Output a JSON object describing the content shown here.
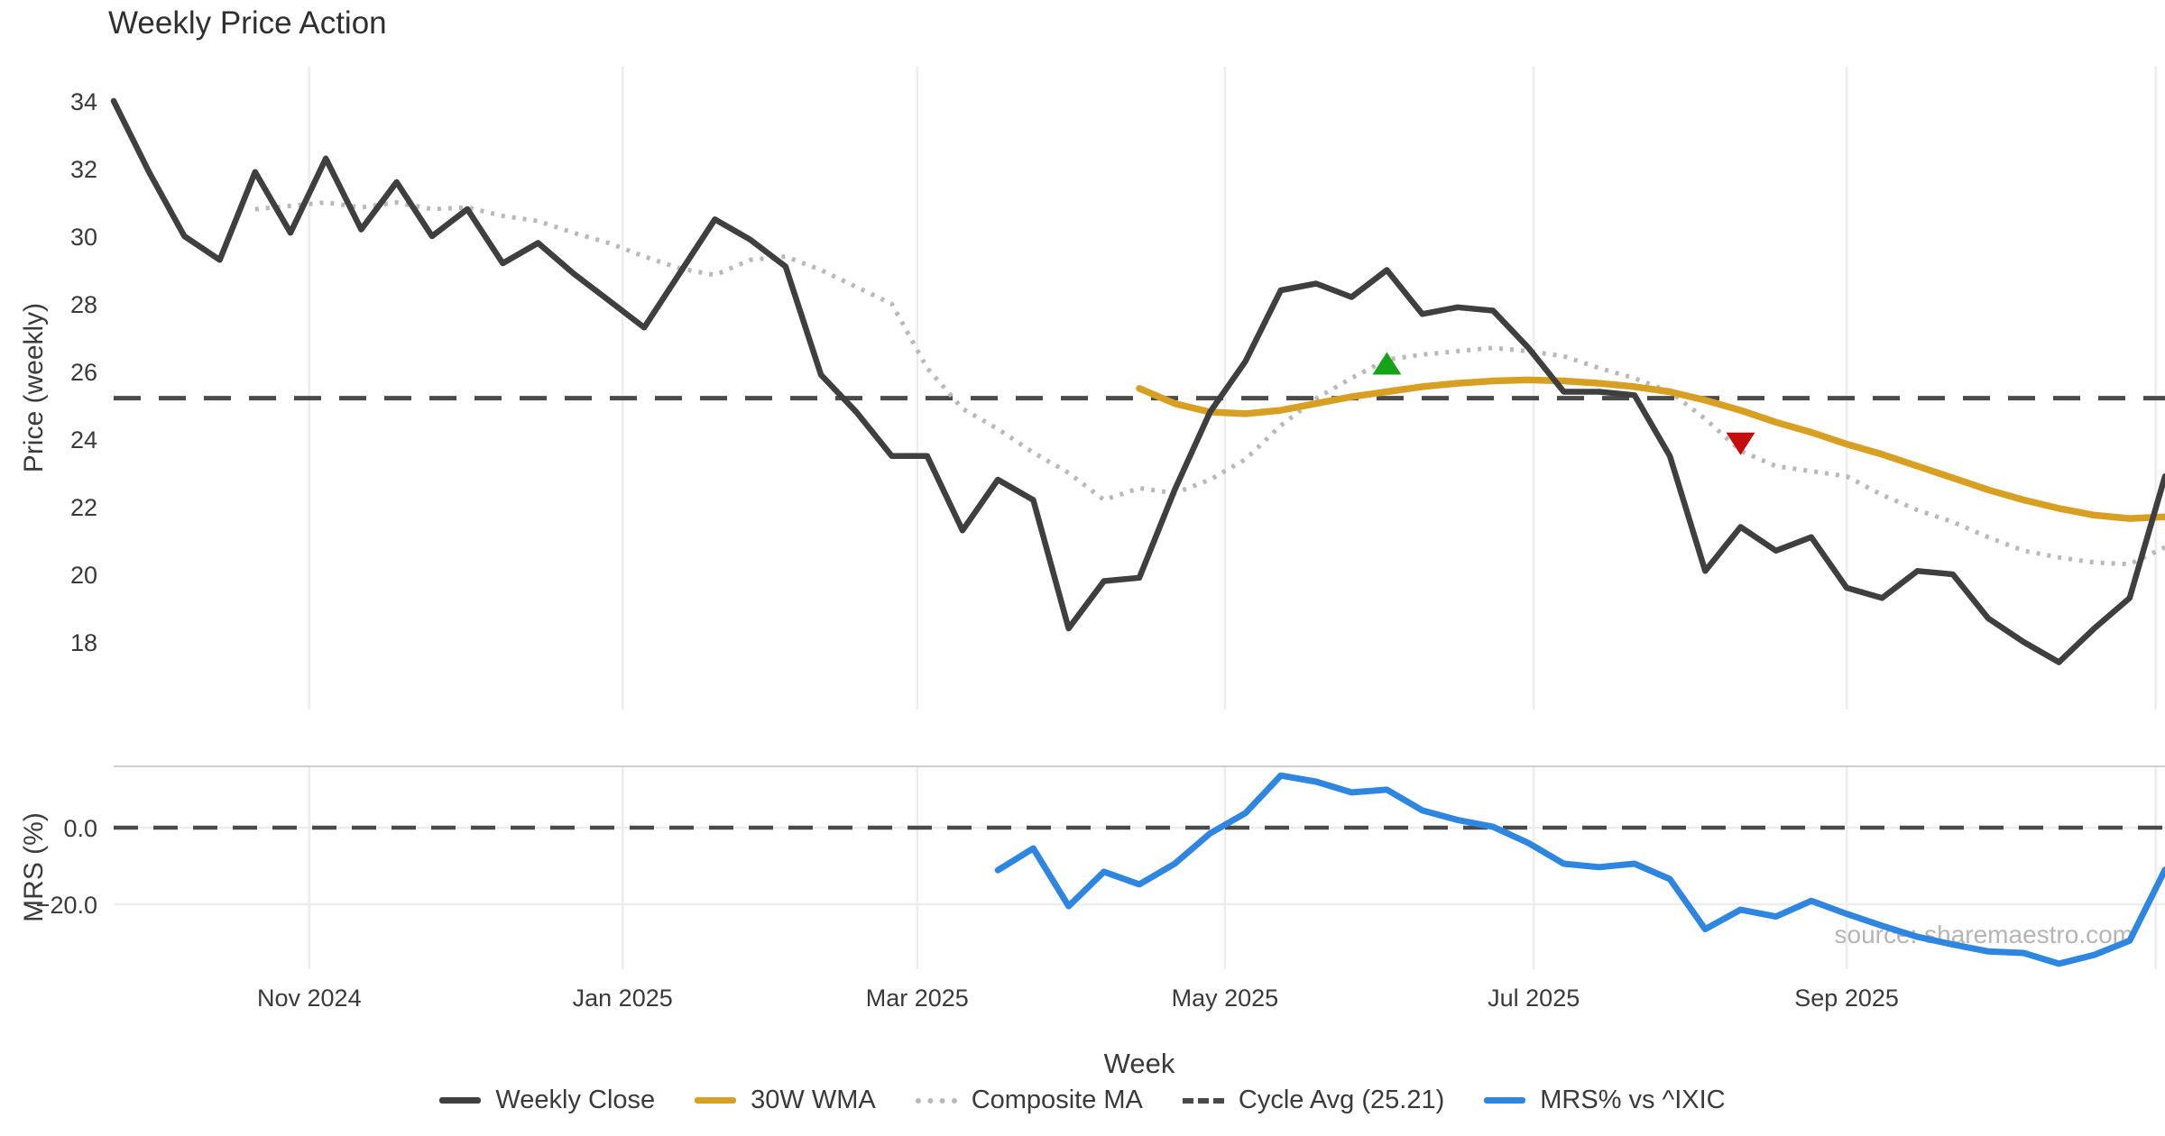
{
  "title": "Weekly Price Action",
  "source": "source: sharemaestro.com",
  "axes": {
    "price_label": "Price (weekly)",
    "mrs_label": "MRS (%)",
    "x_label": "Week"
  },
  "colors": {
    "close": "#3f3f3f",
    "wma": "#d7a022",
    "composite": "#b9b9b9",
    "cycle_avg": "#4a4a4a",
    "mrs": "#2f86e0",
    "buy_marker": "#17a317",
    "sell_marker": "#c40d0d",
    "grid": "#ededf0",
    "panel_border": "#cfcfcf",
    "text": "#3a3a3a",
    "muted_text": "#b5b5b5"
  },
  "legend": {
    "items": [
      {
        "label": "Weekly Close",
        "style": "solid",
        "color": "#3f3f3f"
      },
      {
        "label": "30W WMA",
        "style": "solid",
        "color": "#d7a022"
      },
      {
        "label": "Composite MA",
        "style": "dotted",
        "color": "#b9b9b9"
      },
      {
        "label": "Cycle Avg (25.21)",
        "style": "dashed",
        "color": "#4a4a4a"
      },
      {
        "label": "MRS% vs ^IXIC",
        "style": "solid",
        "color": "#2f86e0"
      }
    ]
  },
  "chart_data": [
    {
      "type": "line",
      "panel": "price",
      "title": "Weekly Price Action",
      "ylabel": "Price (weekly)",
      "xlabel": "Week",
      "ylim": [
        16,
        35
      ],
      "yticks": [
        34,
        32,
        30,
        28,
        26,
        24,
        22,
        20,
        18
      ],
      "x_unit": "weekly index starting late Sep 2024",
      "x_ticks": [
        {
          "pos": 5.53,
          "label": "Nov 2024"
        },
        {
          "pos": 14.39,
          "label": "Jan 2025"
        },
        {
          "pos": 22.72,
          "label": "Mar 2025"
        },
        {
          "pos": 31.42,
          "label": "May 2025"
        },
        {
          "pos": 40.15,
          "label": "Jul 2025"
        },
        {
          "pos": 49.0,
          "label": "Sep 2025"
        },
        {
          "pos": 57.74,
          "label": ""
        }
      ],
      "cycle_avg": 25.21,
      "series": [
        {
          "name": "Weekly Close",
          "color": "#3f3f3f",
          "style": "solid",
          "values": [
            34.0,
            31.9,
            30.0,
            29.3,
            31.9,
            30.1,
            32.3,
            30.2,
            31.6,
            30.0,
            30.8,
            29.2,
            29.8,
            28.9,
            28.1,
            27.3,
            28.9,
            30.5,
            29.9,
            29.1,
            25.9,
            24.8,
            23.5,
            23.5,
            21.3,
            22.8,
            22.2,
            18.4,
            19.8,
            19.9,
            22.5,
            24.8,
            26.3,
            28.4,
            28.6,
            28.2,
            29.0,
            27.7,
            27.9,
            27.8,
            26.7,
            25.4,
            25.4,
            25.3,
            23.5,
            20.1,
            21.4,
            20.7,
            21.1,
            19.6,
            19.3,
            20.1,
            20.0,
            18.7,
            18.0,
            17.4,
            18.4,
            19.3,
            22.9
          ]
        },
        {
          "name": "30W WMA",
          "color": "#d7a022",
          "style": "solid",
          "values": [
            null,
            null,
            null,
            null,
            null,
            null,
            null,
            null,
            null,
            null,
            null,
            null,
            null,
            null,
            null,
            null,
            null,
            null,
            null,
            null,
            null,
            null,
            null,
            null,
            null,
            null,
            null,
            null,
            null,
            25.5,
            25.05,
            24.8,
            24.75,
            24.85,
            25.05,
            25.25,
            25.4,
            25.55,
            25.65,
            25.72,
            25.75,
            25.72,
            25.65,
            25.55,
            25.4,
            25.15,
            24.85,
            24.5,
            24.2,
            23.85,
            23.55,
            23.2,
            22.85,
            22.5,
            22.2,
            21.95,
            21.75,
            21.65,
            21.7
          ]
        },
        {
          "name": "Composite MA",
          "color": "#b9b9b9",
          "style": "dotted",
          "values": [
            null,
            null,
            null,
            null,
            30.8,
            30.9,
            31.0,
            30.85,
            31.0,
            30.8,
            30.85,
            30.6,
            30.45,
            30.1,
            29.8,
            29.4,
            29.05,
            28.85,
            29.3,
            29.4,
            29.0,
            28.5,
            28.0,
            26.1,
            24.9,
            24.3,
            23.6,
            23.0,
            22.2,
            22.55,
            22.4,
            22.8,
            23.4,
            24.4,
            25.2,
            25.8,
            26.35,
            26.5,
            26.6,
            26.7,
            26.6,
            26.45,
            26.1,
            25.8,
            25.4,
            24.6,
            23.65,
            23.2,
            23.05,
            22.9,
            22.35,
            21.9,
            21.55,
            21.1,
            20.7,
            20.5,
            20.35,
            20.3,
            20.8
          ]
        }
      ],
      "markers": [
        {
          "shape": "triangle-up",
          "week": 36,
          "value": 26.2,
          "color": "#17a317",
          "name": "buy-signal-marker"
        },
        {
          "shape": "triangle-down",
          "week": 46,
          "value": 23.9,
          "color": "#c40d0d",
          "name": "sell-signal-marker"
        }
      ]
    },
    {
      "type": "line",
      "panel": "mrs",
      "ylabel": "MRS (%)",
      "ylim": [
        -37,
        16
      ],
      "yticks": [
        {
          "value": 0,
          "label": "0.0"
        },
        {
          "value": -20,
          "label": "−20.0"
        }
      ],
      "zero_line": "dashed",
      "series": [
        {
          "name": "MRS% vs ^IXIC",
          "color": "#2f86e0",
          "style": "solid",
          "values": [
            null,
            null,
            null,
            null,
            null,
            null,
            null,
            null,
            null,
            null,
            null,
            null,
            null,
            null,
            null,
            null,
            null,
            null,
            null,
            null,
            null,
            null,
            null,
            null,
            null,
            -11.1,
            -5.4,
            -20.5,
            -11.5,
            -14.8,
            -9.4,
            -1.5,
            3.8,
            13.6,
            12.0,
            9.2,
            9.9,
            4.5,
            2.0,
            0.2,
            -4.0,
            -9.4,
            -10.3,
            -9.4,
            -13.4,
            -26.5,
            -21.4,
            -23.2,
            -19.1,
            -22.5,
            -25.6,
            -28.5,
            -30.5,
            -32.3,
            -32.7,
            -35.5,
            -33.2,
            -29.5,
            -11.0
          ]
        }
      ]
    }
  ]
}
